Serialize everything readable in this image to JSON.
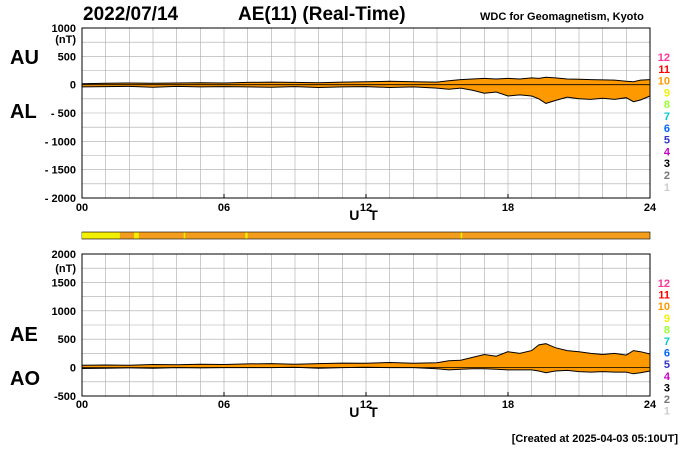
{
  "header": {
    "date": "2022/07/14",
    "title": "AE(11) (Real-Time)",
    "source": "WDC for Geomagnetism, Kyoto",
    "created": "[Created at 2025-04-03 05:10UT]"
  },
  "colors": {
    "fill": "#ff9900",
    "grid": "#aaaaaa",
    "bar_bg": "#f29e1c",
    "bar_yellow": "#f0f000",
    "station_counts": [
      "#ff3399",
      "#ff0000",
      "#ff9900",
      "#f0f000",
      "#99ff33",
      "#00cccc",
      "#0066ff",
      "#3333cc",
      "#cc00cc",
      "#000000",
      "#777777",
      "#cccccc"
    ]
  },
  "station_count_labels": [
    "12",
    "11",
    "10",
    "9",
    "8",
    "7",
    "6",
    "5",
    "4",
    "3",
    "2",
    "1"
  ],
  "chart_data": [
    {
      "type": "area",
      "panel": "AU/AL",
      "series_labels": [
        "AU",
        "AL"
      ],
      "unit_label": "(nT)",
      "xlabel": "U T",
      "x_ticks": [
        "00",
        "06",
        "12",
        "18",
        "24"
      ],
      "y_ticks": [
        "1000",
        "500",
        "0",
        "- 500",
        "- 1000",
        "- 1500",
        "- 2000"
      ],
      "ylim": [
        -2000,
        1000
      ],
      "xlim": [
        0,
        24
      ],
      "grid": true,
      "x": [
        0,
        1,
        2,
        3,
        4,
        5,
        6,
        7,
        8,
        9,
        10,
        11,
        12,
        13,
        14,
        15,
        15.5,
        16,
        16.5,
        17,
        17.5,
        18,
        18.5,
        19,
        19.3,
        19.6,
        20,
        20.5,
        21,
        21.5,
        22,
        22.5,
        23,
        23.3,
        23.6,
        24
      ],
      "upper": [
        15,
        25,
        30,
        25,
        30,
        35,
        30,
        40,
        45,
        40,
        35,
        45,
        50,
        60,
        50,
        45,
        70,
        90,
        100,
        110,
        100,
        110,
        100,
        120,
        110,
        130,
        120,
        100,
        95,
        90,
        85,
        80,
        60,
        50,
        80,
        90
      ],
      "lower": [
        -40,
        -35,
        -30,
        -45,
        -30,
        -40,
        -35,
        -40,
        -45,
        -35,
        -50,
        -40,
        -35,
        -50,
        -40,
        -60,
        -80,
        -60,
        -100,
        -150,
        -130,
        -200,
        -180,
        -200,
        -250,
        -330,
        -280,
        -220,
        -250,
        -260,
        -240,
        -260,
        -230,
        -300,
        -270,
        -200
      ]
    },
    {
      "type": "area",
      "panel": "AE/AO",
      "series_labels": [
        "AE",
        "AO"
      ],
      "unit_label": "(nT)",
      "xlabel": "U T",
      "x_ticks": [
        "00",
        "06",
        "12",
        "18",
        "24"
      ],
      "y_ticks": [
        "2000",
        "1500",
        "1000",
        "500",
        "0",
        "-500"
      ],
      "ylim": [
        -500,
        2000
      ],
      "xlim": [
        0,
        24
      ],
      "grid": true,
      "x": [
        0,
        1,
        2,
        3,
        4,
        5,
        6,
        7,
        8,
        9,
        10,
        11,
        12,
        13,
        14,
        15,
        15.5,
        16,
        16.5,
        17,
        17.5,
        18,
        18.5,
        19,
        19.3,
        19.6,
        20,
        20.5,
        21,
        21.5,
        22,
        22.5,
        23,
        23.3,
        23.6,
        24
      ],
      "upper": [
        40,
        45,
        40,
        55,
        50,
        60,
        55,
        65,
        70,
        60,
        70,
        80,
        75,
        90,
        75,
        85,
        120,
        130,
        180,
        230,
        200,
        280,
        250,
        300,
        400,
        420,
        350,
        300,
        280,
        250,
        230,
        250,
        220,
        300,
        280,
        240
      ],
      "lower": [
        -15,
        -10,
        -5,
        -10,
        0,
        -5,
        0,
        0,
        0,
        5,
        -10,
        0,
        5,
        0,
        0,
        -20,
        -40,
        -30,
        -20,
        -20,
        -30,
        -40,
        -40,
        -40,
        -60,
        -90,
        -60,
        -50,
        -70,
        -80,
        -70,
        -80,
        -80,
        -110,
        -90,
        -60
      ]
    }
  ],
  "station_bar": {
    "yellow_segments": [
      [
        0,
        1.6
      ],
      [
        2.2,
        2.4
      ],
      [
        4.3,
        4.35
      ],
      [
        6.9,
        7.0
      ],
      [
        16.0,
        16.05
      ]
    ]
  }
}
